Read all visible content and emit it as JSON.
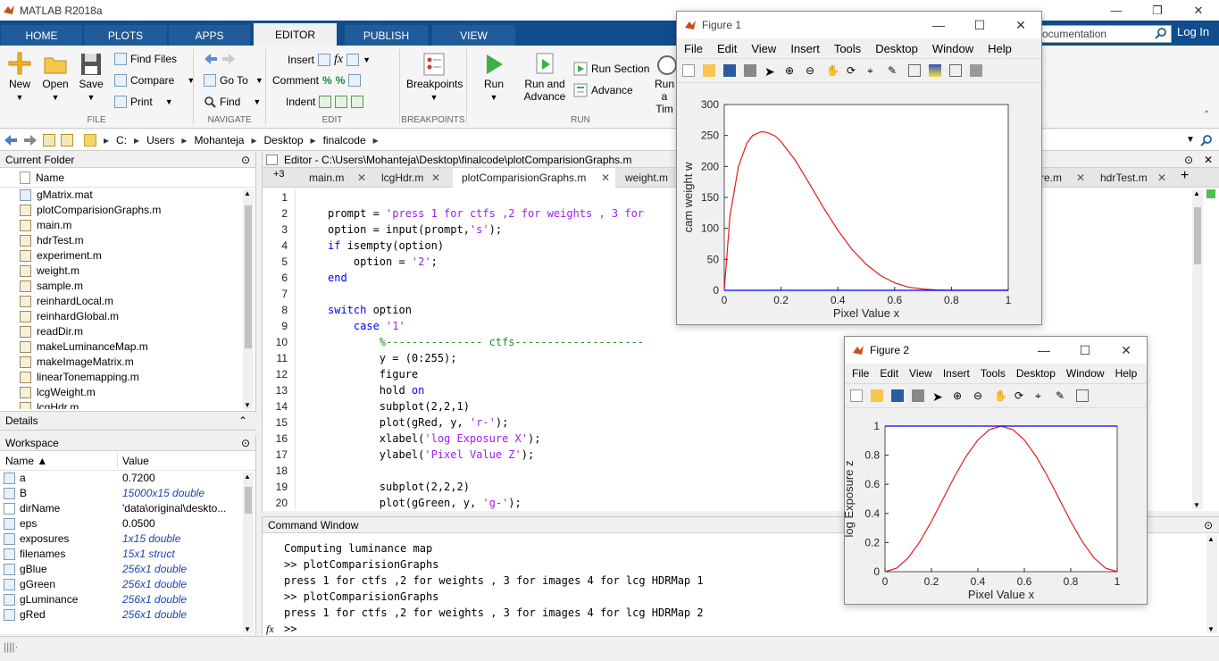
{
  "window": {
    "title": "MATLAB R2018a",
    "minimize": "—",
    "restore": "❐",
    "close": "✕"
  },
  "tabs": [
    {
      "label": "HOME"
    },
    {
      "label": "PLOTS"
    },
    {
      "label": "APPS"
    },
    {
      "label": "EDITOR"
    },
    {
      "label": "PUBLISH"
    },
    {
      "label": "VIEW"
    }
  ],
  "search": {
    "value": "ocumentation"
  },
  "login": "Log In",
  "ribbon": {
    "new": "New",
    "open": "Open",
    "save": "Save",
    "find_files": "Find Files",
    "compare": "Compare",
    "print": "Print",
    "goto": "Go To",
    "find": "Find",
    "insert": "Insert",
    "comment": "Comment",
    "indent": "Indent",
    "fx": "fx",
    "breakpoints": "Breakpoints",
    "run": "Run",
    "run_and_advance_1": "Run and",
    "run_and_advance_2": "Advance",
    "run_section": "Run Section",
    "advance": "Advance",
    "run_time_1": "Run a",
    "run_time_2": "Tim",
    "sections": {
      "file": "FILE",
      "navigate": "NAVIGATE",
      "edit": "EDIT",
      "breakpoints": "BREAKPOINTS",
      "run": "RUN"
    }
  },
  "address": {
    "parts": [
      "C:",
      "Users",
      "Mohanteja",
      "Desktop",
      "finalcode"
    ]
  },
  "current_folder": {
    "title": "Current Folder",
    "column": "Name",
    "files": [
      "gMatrix.mat",
      "plotComparisionGraphs.m",
      "main.m",
      "hdrTest.m",
      "experiment.m",
      "weight.m",
      "sample.m",
      "reinhardLocal.m",
      "reinhardGlobal.m",
      "readDir.m",
      "makeLuminanceMap.m",
      "makeImageMatrix.m",
      "linearTonemapping.m",
      "lcgWeight.m",
      "lcgHdr.m"
    ]
  },
  "details": {
    "title": "Details"
  },
  "workspace": {
    "title": "Workspace",
    "col_name": "Name ▲",
    "col_value": "Value",
    "rows": [
      {
        "name": "a",
        "value": "0.7200"
      },
      {
        "name": "B",
        "value": "15000x15 double"
      },
      {
        "name": "dirName",
        "value": "'data\\original\\deskto..."
      },
      {
        "name": "eps",
        "value": "0.0500"
      },
      {
        "name": "exposures",
        "value": "1x15 double"
      },
      {
        "name": "filenames",
        "value": "15x1 struct"
      },
      {
        "name": "gBlue",
        "value": "256x1 double"
      },
      {
        "name": "gGreen",
        "value": "256x1 double"
      },
      {
        "name": "gLuminance",
        "value": "256x1 double"
      },
      {
        "name": "gRed",
        "value": "256x1 double"
      }
    ]
  },
  "editor": {
    "title": "Editor - C:\\Users\\Mohanteja\\Desktop\\finalcode\\plotComparisionGraphs.m",
    "more_tabs": "+3",
    "tabs": [
      "main.m",
      "lcgHdr.m",
      "plotComparisionGraphs.m",
      "weight.m",
      "re.m",
      "hdrTest.m"
    ],
    "add_tab": "+",
    "lines": [
      {
        "n": "1",
        "t": ""
      },
      {
        "n": "2",
        "t": "prompt = 'press 1 for ctfs ,2 for weights , 3 for"
      },
      {
        "n": "3",
        "t": "option = input(prompt,'s');"
      },
      {
        "n": "4",
        "t": "if isempty(option)"
      },
      {
        "n": "5",
        "t": "    option = '2';"
      },
      {
        "n": "6",
        "t": "end"
      },
      {
        "n": "7",
        "t": ""
      },
      {
        "n": "8",
        "t": "switch option"
      },
      {
        "n": "9",
        "t": "    case '1'"
      },
      {
        "n": "10",
        "t": "        %--------------- ctfs--------------------"
      },
      {
        "n": "11",
        "t": "        y = (0:255);"
      },
      {
        "n": "12",
        "t": "        figure"
      },
      {
        "n": "13",
        "t": "        hold on"
      },
      {
        "n": "14",
        "t": "        subplot(2,2,1)"
      },
      {
        "n": "15",
        "t": "        plot(gRed, y, 'r-');"
      },
      {
        "n": "16",
        "t": "        xlabel('log Exposure X');"
      },
      {
        "n": "17",
        "t": "        ylabel('Pixel Value Z');"
      },
      {
        "n": "18",
        "t": ""
      },
      {
        "n": "19",
        "t": "        subplot(2,2,2)"
      },
      {
        "n": "20",
        "t": "        plot(gGreen, y, 'g-');"
      }
    ]
  },
  "command_window": {
    "title": "Command Window",
    "lines": [
      "Computing luminance map",
      ">> plotComparisionGraphs",
      "press 1 for ctfs ,2 for weights , 3 for images 4 for lcg HDRMap 1",
      ">> plotComparisionGraphs",
      "press 1 for ctfs ,2 for weights , 3 for images 4 for lcg HDRMap 2",
      ">>"
    ],
    "fx": "fx"
  },
  "figure1": {
    "title": "Figure 1",
    "menu": [
      "File",
      "Edit",
      "View",
      "Insert",
      "Tools",
      "Desktop",
      "Window",
      "Help"
    ],
    "xlabel": "Pixel Value x",
    "ylabel": "cam weight w",
    "xticks": [
      "0",
      "0.2",
      "0.4",
      "0.6",
      "0.8",
      "1"
    ],
    "yticks": [
      "0",
      "50",
      "100",
      "150",
      "200",
      "250",
      "300"
    ]
  },
  "figure2": {
    "title": "Figure 2",
    "menu": [
      "File",
      "Edit",
      "View",
      "Insert",
      "Tools",
      "Desktop",
      "Window",
      "Help"
    ],
    "xlabel": "Pixel Value x",
    "ylabel": "log Exposure z",
    "xticks": [
      "0",
      "0.2",
      "0.4",
      "0.6",
      "0.8",
      "1"
    ],
    "yticks": [
      "0",
      "0.2",
      "0.4",
      "0.6",
      "0.8",
      "1"
    ]
  },
  "chart_data": [
    {
      "type": "line",
      "xlabel": "Pixel Value x",
      "ylabel": "cam weight w",
      "xlim": [
        0,
        1
      ],
      "ylim": [
        0,
        300
      ],
      "series": [
        {
          "color": "#e41a1c",
          "x": [
            0,
            0.02,
            0.05,
            0.08,
            0.1,
            0.13,
            0.15,
            0.18,
            0.2,
            0.25,
            0.3,
            0.35,
            0.4,
            0.45,
            0.5,
            0.55,
            0.6,
            0.65,
            0.7,
            0.75,
            0.8,
            0.9,
            1.0
          ],
          "y": [
            0,
            120,
            200,
            238,
            250,
            256,
            255,
            249,
            240,
            210,
            172,
            133,
            97,
            66,
            42,
            24,
            12,
            5,
            2,
            0.5,
            0,
            0,
            0
          ]
        },
        {
          "color": "#0000ff",
          "x": [
            0,
            1
          ],
          "y": [
            0,
            0
          ]
        }
      ]
    },
    {
      "type": "line",
      "xlabel": "Pixel Value x",
      "ylabel": "log Exposure z",
      "xlim": [
        0,
        1
      ],
      "ylim": [
        0,
        1
      ],
      "series": [
        {
          "color": "#e41a1c",
          "x": [
            0,
            0.05,
            0.1,
            0.15,
            0.2,
            0.25,
            0.3,
            0.35,
            0.4,
            0.45,
            0.5,
            0.55,
            0.6,
            0.65,
            0.7,
            0.75,
            0.8,
            0.85,
            0.9,
            0.95,
            1.0
          ],
          "y": [
            0,
            0.024,
            0.095,
            0.206,
            0.345,
            0.5,
            0.655,
            0.794,
            0.905,
            0.976,
            1.0,
            0.976,
            0.905,
            0.794,
            0.655,
            0.5,
            0.345,
            0.206,
            0.095,
            0.024,
            0
          ]
        },
        {
          "color": "#0000ff",
          "x": [
            0,
            1
          ],
          "y": [
            1,
            1
          ]
        }
      ]
    }
  ]
}
